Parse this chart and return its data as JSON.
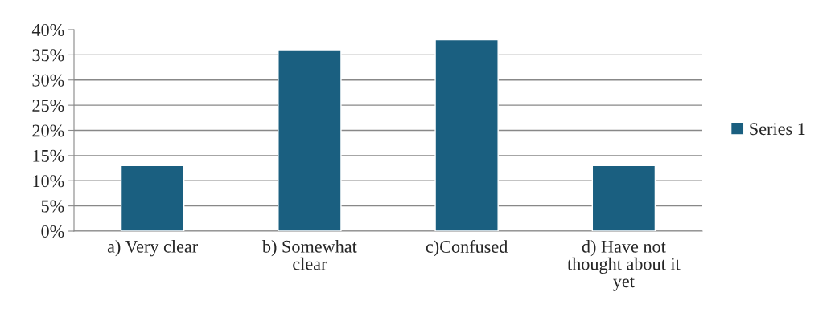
{
  "chart_data": {
    "type": "bar",
    "categories": [
      "a) Very clear",
      "b) Somewhat\nclear",
      "c)Confused",
      "d) Have not\nthought about it\nyet"
    ],
    "series": [
      {
        "name": "Series 1",
        "color": "#1a5f80",
        "values": [
          13,
          36,
          38,
          13
        ]
      }
    ],
    "ylim": [
      0,
      40
    ],
    "yticks": [
      {
        "value": 0,
        "label": "0%"
      },
      {
        "value": 5,
        "label": "5%"
      },
      {
        "value": 10,
        "label": "10%"
      },
      {
        "value": 15,
        "label": "15%"
      },
      {
        "value": 20,
        "label": "20%"
      },
      {
        "value": 25,
        "label": "25%"
      },
      {
        "value": 30,
        "label": "30%"
      },
      {
        "value": 35,
        "label": "35%"
      },
      {
        "value": 40,
        "label": "40%"
      }
    ],
    "grid": "y",
    "legend": "right"
  }
}
